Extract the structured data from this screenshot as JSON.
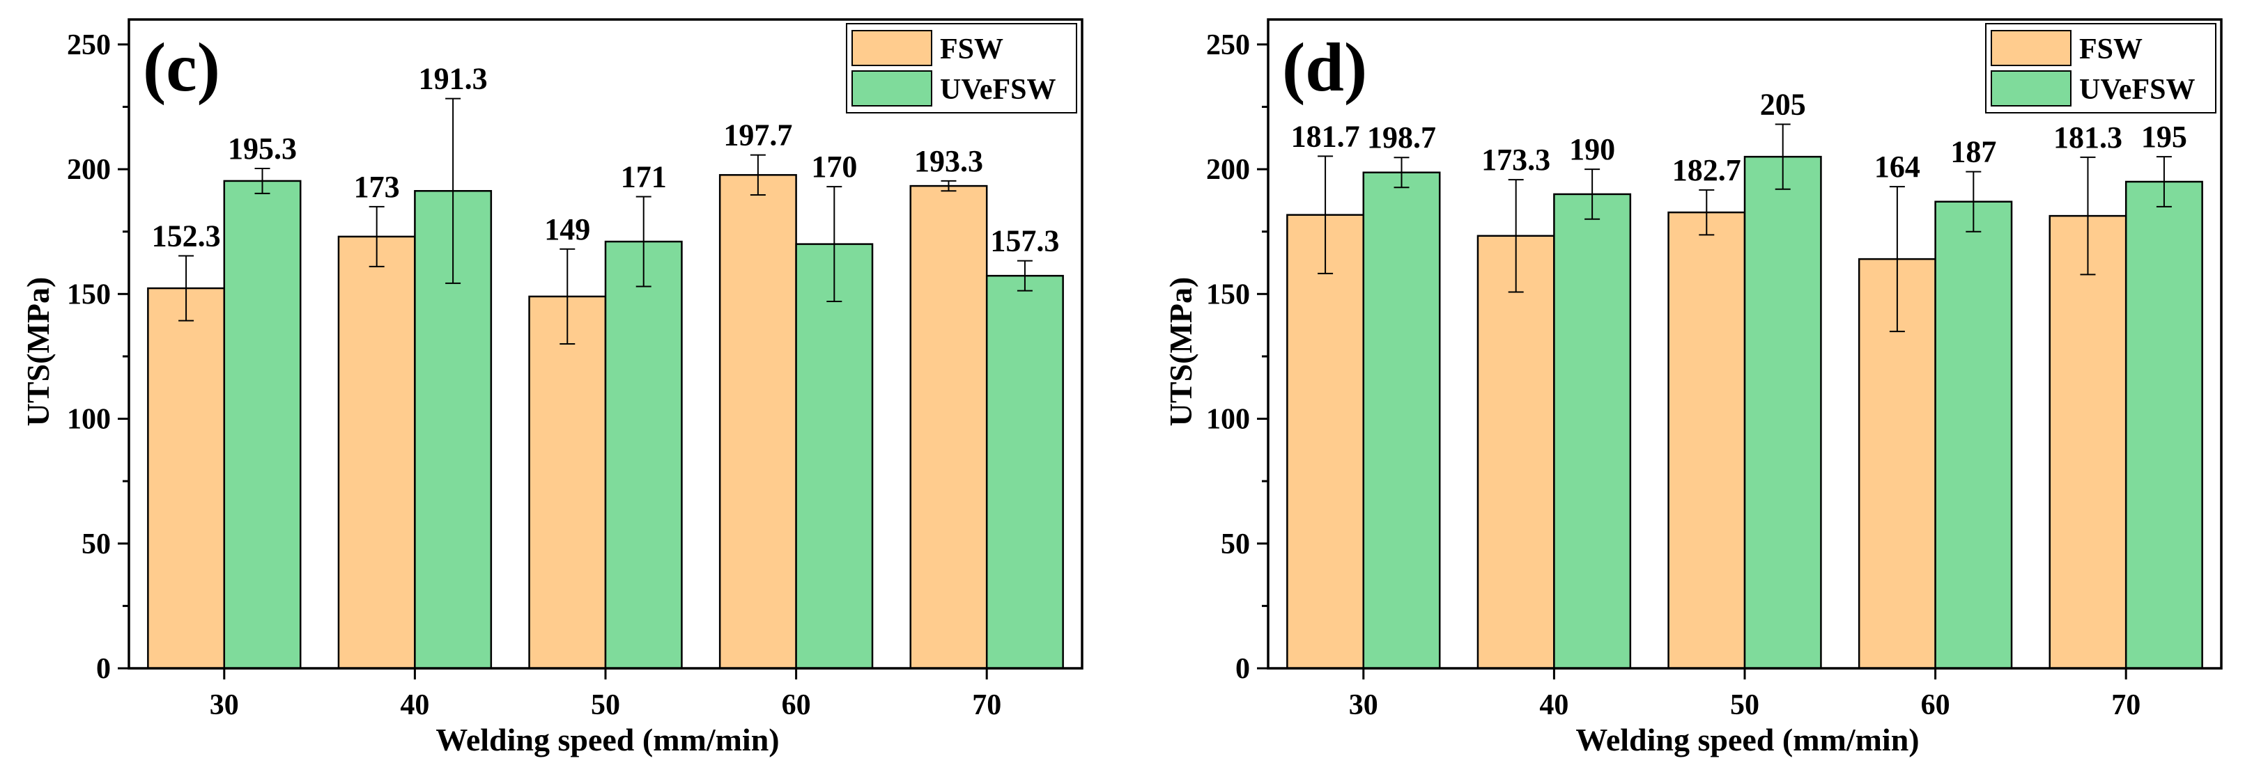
{
  "colors": {
    "fsw": "#FFCC8E",
    "uvefsw": "#7FDB9B",
    "frame": "#000000"
  },
  "chart_data": [
    {
      "type": "bar",
      "panel_label": "(c)",
      "xlabel": "Welding speed (mm/min)",
      "ylabel": "UTS(MPa)",
      "ylim": [
        0,
        260
      ],
      "yticks": [
        0,
        50,
        100,
        150,
        200,
        250
      ],
      "legend_position": "top-right",
      "categories": [
        "30",
        "40",
        "50",
        "60",
        "70"
      ],
      "series": [
        {
          "name": "FSW",
          "color_key": "fsw",
          "values": [
            152.3,
            173,
            149,
            197.7,
            193.3
          ],
          "labels": [
            "152.3",
            "173",
            "149",
            "197.7",
            "193.3"
          ],
          "errors": [
            13,
            12,
            19,
            8,
            2
          ]
        },
        {
          "name": "UVeFSW",
          "color_key": "uvefsw",
          "values": [
            195.3,
            191.3,
            171,
            170,
            157.3
          ],
          "labels": [
            "195.3",
            "191.3",
            "171",
            "170",
            "157.3"
          ],
          "errors": [
            5,
            37,
            18,
            23,
            6
          ]
        }
      ]
    },
    {
      "type": "bar",
      "panel_label": "(d)",
      "xlabel": "Welding speed (mm/min)",
      "ylabel": "UTS(MPa)",
      "ylim": [
        0,
        260
      ],
      "yticks": [
        0,
        50,
        100,
        150,
        200,
        250
      ],
      "legend_position": "top-right",
      "categories": [
        "30",
        "40",
        "50",
        "60",
        "70"
      ],
      "series": [
        {
          "name": "FSW",
          "color_key": "fsw",
          "values": [
            181.7,
            173.3,
            182.7,
            164,
            181.3
          ],
          "labels": [
            "181.7",
            "173.3",
            "182.7",
            "164",
            "181.3"
          ],
          "errors": [
            23.5,
            22.5,
            9,
            29,
            23.5
          ]
        },
        {
          "name": "UVeFSW",
          "color_key": "uvefsw",
          "values": [
            198.7,
            190,
            205,
            187,
            195
          ],
          "labels": [
            "198.7",
            "190",
            "205",
            "187",
            "195"
          ],
          "errors": [
            6,
            10,
            13,
            12,
            10
          ]
        }
      ]
    }
  ]
}
